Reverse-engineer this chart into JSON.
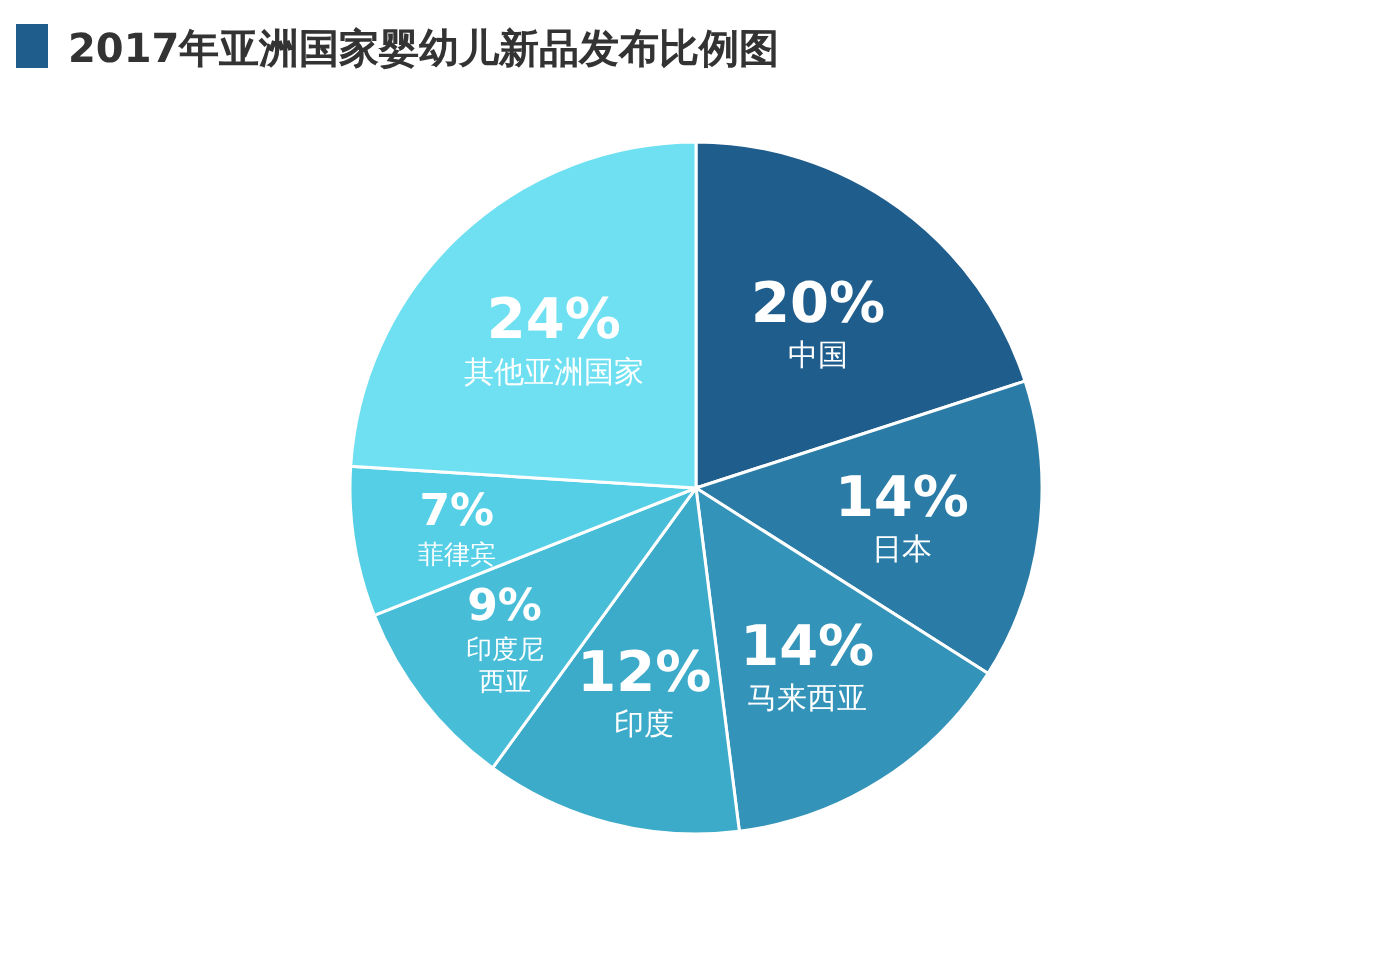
{
  "chart_data": {
    "type": "pie",
    "title": "2017年亚洲国家婴幼儿新品发布比例图",
    "categories": [
      "中国",
      "日本",
      "马来西亚",
      "印度",
      "印度尼西亚",
      "菲律宾",
      "其他亚洲国家"
    ],
    "values": [
      20,
      14,
      14,
      12,
      9,
      7,
      24
    ],
    "colors": [
      "#1f5d8c",
      "#2a7ca6",
      "#3393b8",
      "#3caac9",
      "#47bdd8",
      "#55cfe6",
      "#6fe0f2"
    ],
    "value_labels": [
      "20%",
      "14%",
      "14%",
      "12%",
      "9%",
      "7%",
      "24%"
    ]
  }
}
